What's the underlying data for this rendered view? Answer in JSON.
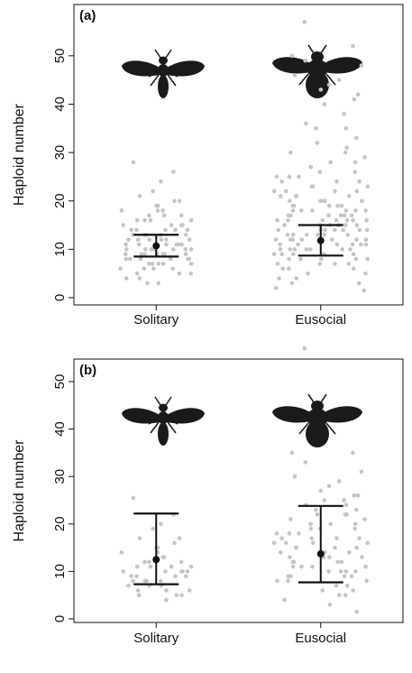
{
  "chart_data": [
    {
      "type": "strip",
      "title": "(a)",
      "y_label": "Haploid number",
      "point_color": "#c4c4c4",
      "bar_color": "#111111",
      "ylim": [
        -1.5,
        60.6
      ],
      "yticks": [
        0,
        10,
        20,
        30,
        40,
        50
      ],
      "groups": [
        {
          "name": "Solitary",
          "estimate": 10.7,
          "lower": 8.5,
          "upper": 13,
          "values": [
            28,
            26,
            24,
            22,
            21,
            20,
            20,
            19,
            19,
            18,
            18,
            18,
            17,
            17,
            17,
            16,
            16,
            16,
            16,
            15,
            15,
            15,
            15,
            14,
            14,
            14,
            14,
            14,
            13,
            13,
            13,
            13,
            13,
            12,
            12,
            12,
            12,
            12,
            12,
            11,
            11,
            11,
            11,
            11,
            11,
            11,
            10,
            10,
            10,
            10,
            10,
            10,
            10,
            10,
            9,
            9,
            9,
            9,
            9,
            9,
            9,
            8,
            8,
            8,
            8,
            8,
            8,
            7,
            7,
            7,
            7,
            7,
            6,
            6,
            6,
            6,
            5,
            5,
            5,
            4,
            4,
            3,
            3
          ]
        },
        {
          "name": "Eusocial",
          "estimate": 11.8,
          "lower": 8.7,
          "upper": 15,
          "values": [
            57,
            52,
            50,
            49,
            48,
            46,
            45,
            44,
            43,
            42,
            41,
            40,
            38,
            36,
            35,
            35,
            33,
            32,
            31,
            30,
            30,
            29,
            28,
            28,
            27,
            27,
            26,
            26,
            25,
            25,
            25,
            24,
            24,
            24,
            23,
            23,
            23,
            22,
            22,
            22,
            22,
            21,
            21,
            21,
            21,
            20,
            20,
            20,
            20,
            20,
            19,
            19,
            19,
            19,
            19,
            18,
            18,
            18,
            18,
            18,
            18,
            17,
            17,
            17,
            17,
            17,
            17,
            16,
            16,
            16,
            16,
            16,
            16,
            16,
            15,
            15,
            15,
            15,
            15,
            15,
            15,
            14,
            14,
            14,
            14,
            14,
            14,
            14,
            13,
            13,
            13,
            13,
            13,
            13,
            12,
            12,
            12,
            12,
            12,
            12,
            12,
            11,
            11,
            11,
            11,
            11,
            11,
            10,
            10,
            10,
            10,
            10,
            10,
            10,
            9,
            9,
            9,
            9,
            9,
            9,
            8,
            8,
            8,
            8,
            8,
            7,
            7,
            7,
            7,
            6,
            6,
            6,
            5,
            5,
            4,
            4,
            3,
            3,
            2,
            1.5
          ]
        }
      ]
    },
    {
      "type": "strip",
      "title": "(b)",
      "y_label": "Haploid number",
      "point_color": "#c4c4c4",
      "bar_color": "#111111",
      "ylim": [
        -0.76,
        54.75
      ],
      "yticks": [
        0,
        10,
        20,
        30,
        40,
        50
      ],
      "groups": [
        {
          "name": "Solitary",
          "estimate": 12.5,
          "lower": 7.3,
          "upper": 22.2,
          "values": [
            25.5,
            22,
            20,
            19,
            17,
            17,
            16,
            15,
            15,
            14,
            14,
            13,
            13,
            12,
            12,
            12,
            11,
            11,
            11,
            11,
            10,
            10,
            10,
            10,
            10,
            9,
            9,
            9,
            9,
            8,
            8,
            8,
            8,
            7,
            7,
            7,
            6,
            6,
            6,
            5,
            5,
            5,
            4
          ]
        },
        {
          "name": "Eusocial",
          "estimate": 13.7,
          "lower": 7.7,
          "upper": 23.8,
          "values": [
            57,
            35,
            35,
            33,
            31,
            30,
            29,
            28,
            27,
            26,
            26,
            25,
            25,
            24,
            24,
            23,
            23,
            22,
            22,
            22,
            21,
            21,
            20,
            20,
            20,
            19,
            19,
            19,
            18,
            18,
            18,
            17,
            17,
            17,
            17,
            16,
            16,
            16,
            16,
            15,
            15,
            15,
            15,
            14,
            14,
            14,
            14,
            13,
            13,
            13,
            13,
            12,
            12,
            12,
            12,
            11,
            11,
            11,
            11,
            10,
            10,
            10,
            10,
            9,
            9,
            9,
            9,
            8,
            8,
            8,
            7,
            7,
            6,
            6,
            5,
            5,
            4,
            3,
            1.5
          ]
        }
      ]
    }
  ]
}
